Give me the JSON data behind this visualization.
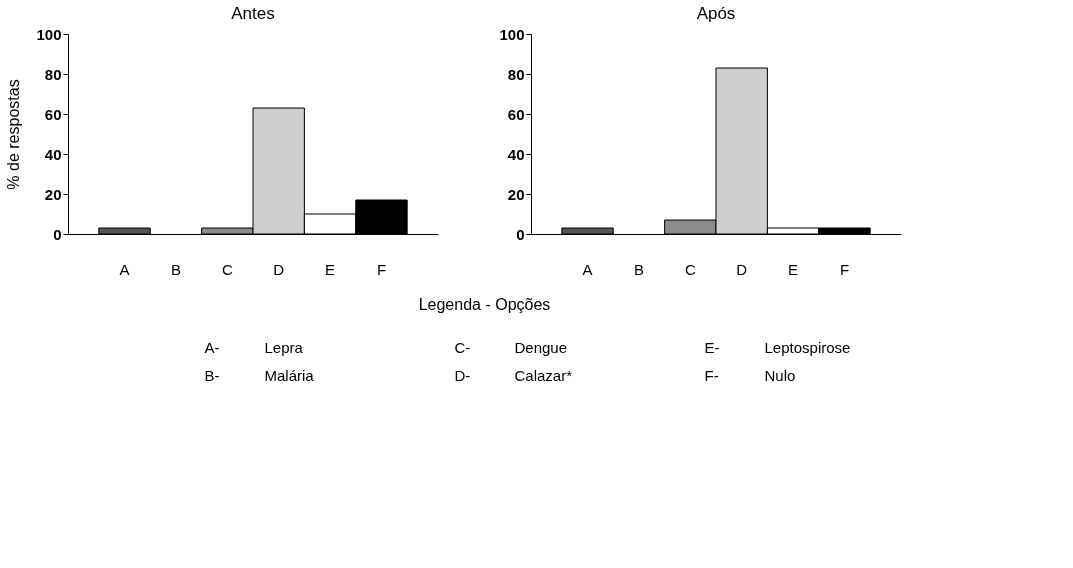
{
  "chart_data": [
    {
      "type": "bar",
      "title": "Antes",
      "ylabel": "% de respostas",
      "categories": [
        "A",
        "B",
        "C",
        "D",
        "E",
        "F"
      ],
      "values": [
        3,
        0,
        3,
        63,
        10,
        17
      ],
      "colors": [
        "#555555",
        "#777777",
        "#8c8c8c",
        "#cfcfcf",
        "#ffffff",
        "#000000"
      ],
      "ylim": [
        0,
        100
      ],
      "yticks": [
        0,
        20,
        40,
        60,
        80,
        100
      ],
      "grid": false,
      "legend": false
    },
    {
      "type": "bar",
      "title": "Após",
      "categories": [
        "A",
        "B",
        "C",
        "D",
        "E",
        "F"
      ],
      "values": [
        3,
        0,
        7,
        83,
        3,
        3
      ],
      "colors": [
        "#555555",
        "#777777",
        "#8c8c8c",
        "#cfcfcf",
        "#ffffff",
        "#000000"
      ],
      "ylim": [
        0,
        100
      ],
      "yticks": [
        0,
        20,
        40,
        60,
        80,
        100
      ],
      "grid": false,
      "legend": false
    },
    {
      "type": "other",
      "title": "Legenda - Opções",
      "annotations": [
        "A-",
        "Lepra",
        "B-",
        "Malária",
        "C-",
        "Dengue",
        "D-",
        "Calazar*",
        "E-",
        "Leptospirose",
        "F-",
        "Nulo"
      ]
    }
  ]
}
